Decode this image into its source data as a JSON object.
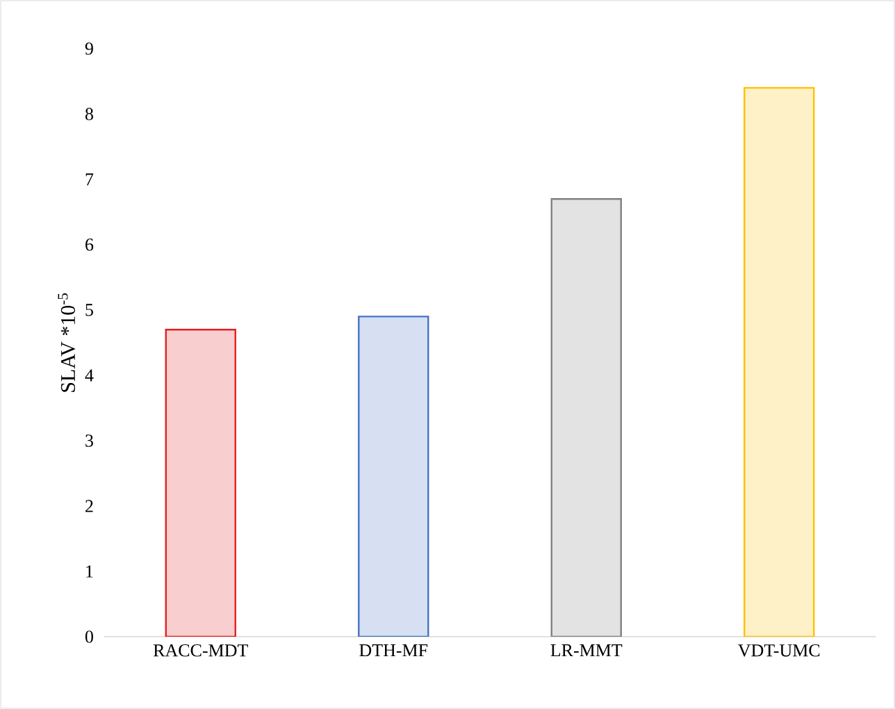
{
  "chart_data": {
    "type": "bar",
    "ylabel": "SLAV *10$^{-5}$",
    "categories": [
      "RACC-MDT",
      "DTH-MF",
      "LR-MMT",
      "VDT-UMC"
    ],
    "values": [
      4.7,
      4.9,
      6.7,
      8.4
    ],
    "colors": [
      "#e02020",
      "#4472c4",
      "#808080",
      "#ffc000"
    ],
    "ylim": [
      0,
      9
    ],
    "yticks": [
      0,
      1,
      2,
      3,
      4,
      5,
      6,
      7,
      8,
      9
    ]
  }
}
